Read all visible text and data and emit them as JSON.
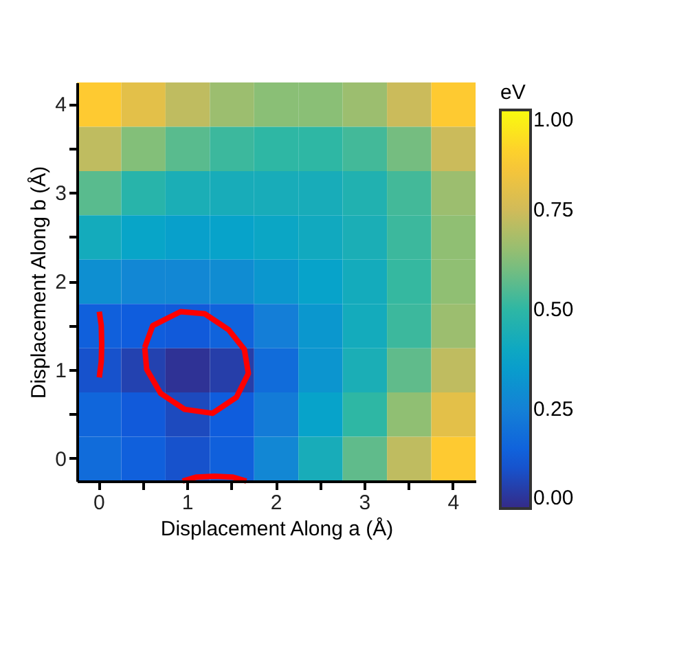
{
  "chart_data": {
    "type": "heatmap",
    "xlabel": "Displacement Along a (Å)",
    "ylabel": "Displacement Along b (Å)",
    "clabel": "eV",
    "categories": [
      "0",
      null,
      "1",
      null,
      "2",
      null,
      "3",
      null,
      "4"
    ],
    "y_categories": [
      "4",
      null,
      "3",
      null,
      "2",
      null,
      "1",
      null,
      "0"
    ],
    "cells": [
      [
        0.88,
        0.8,
        0.72,
        0.66,
        0.63,
        0.63,
        0.66,
        0.74,
        0.88
      ],
      [
        0.72,
        0.62,
        0.56,
        0.52,
        0.5,
        0.5,
        0.53,
        0.6,
        0.74
      ],
      [
        0.56,
        0.48,
        0.44,
        0.43,
        0.43,
        0.43,
        0.46,
        0.53,
        0.66
      ],
      [
        0.42,
        0.38,
        0.36,
        0.37,
        0.39,
        0.41,
        0.44,
        0.52,
        0.64
      ],
      [
        0.3,
        0.27,
        0.27,
        0.29,
        0.33,
        0.37,
        0.42,
        0.51,
        0.64
      ],
      [
        0.14,
        0.13,
        0.12,
        0.15,
        0.24,
        0.33,
        0.42,
        0.52,
        0.66
      ],
      [
        0.1,
        0.06,
        0.02,
        0.05,
        0.18,
        0.32,
        0.44,
        0.57,
        0.72
      ],
      [
        0.16,
        0.12,
        0.08,
        0.13,
        0.23,
        0.37,
        0.5,
        0.64,
        0.8
      ],
      [
        0.18,
        0.14,
        0.1,
        0.14,
        0.27,
        0.43,
        0.57,
        0.72,
        0.88
      ]
    ],
    "clim": [
      0,
      1
    ],
    "cticks": [
      {
        "value": 0,
        "label": "0.00"
      },
      {
        "value": 0.25,
        "label": "0.25"
      },
      {
        "value": 0.5,
        "label": "0.50"
      },
      {
        "value": 0.75,
        "label": "0.75"
      },
      {
        "value": 1,
        "label": "1.00"
      }
    ],
    "grid": false
  }
}
